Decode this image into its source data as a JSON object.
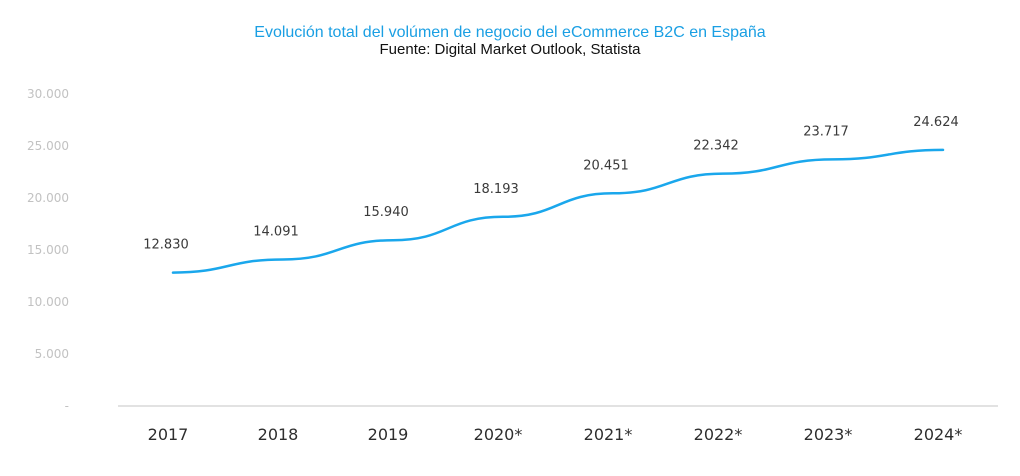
{
  "chart_data": {
    "type": "line",
    "title": "Evolución total del volúmen de negocio del eCommerce B2C en España",
    "subtitle": "Fuente: Digital Market Outlook, Statista",
    "categories": [
      "2017",
      "2018",
      "2019",
      "2020*",
      "2021*",
      "2022*",
      "2023*",
      "2024*"
    ],
    "series": [
      {
        "values": [
          12830,
          14091,
          15940,
          18193,
          20451,
          22342,
          23717,
          24624
        ],
        "labels": [
          "12.830",
          "14.091",
          "15.940",
          "18.193",
          "20.451",
          "22.342",
          "23.717",
          "24.624"
        ]
      }
    ],
    "y_ticks": [
      {
        "value": 0,
        "label": "-"
      },
      {
        "value": 5000,
        "label": "5.000"
      },
      {
        "value": 10000,
        "label": "10.000"
      },
      {
        "value": 15000,
        "label": "15.000"
      },
      {
        "value": 20000,
        "label": "20.000"
      },
      {
        "value": 25000,
        "label": "25.000"
      },
      {
        "value": 30000,
        "label": "30.000"
      }
    ],
    "ylim": [
      0,
      30000
    ],
    "grid": false,
    "legend": "none",
    "colors": {
      "line": "#1aa7ec",
      "title": "#1a9fe3",
      "axis": "#d9d9d9"
    }
  }
}
